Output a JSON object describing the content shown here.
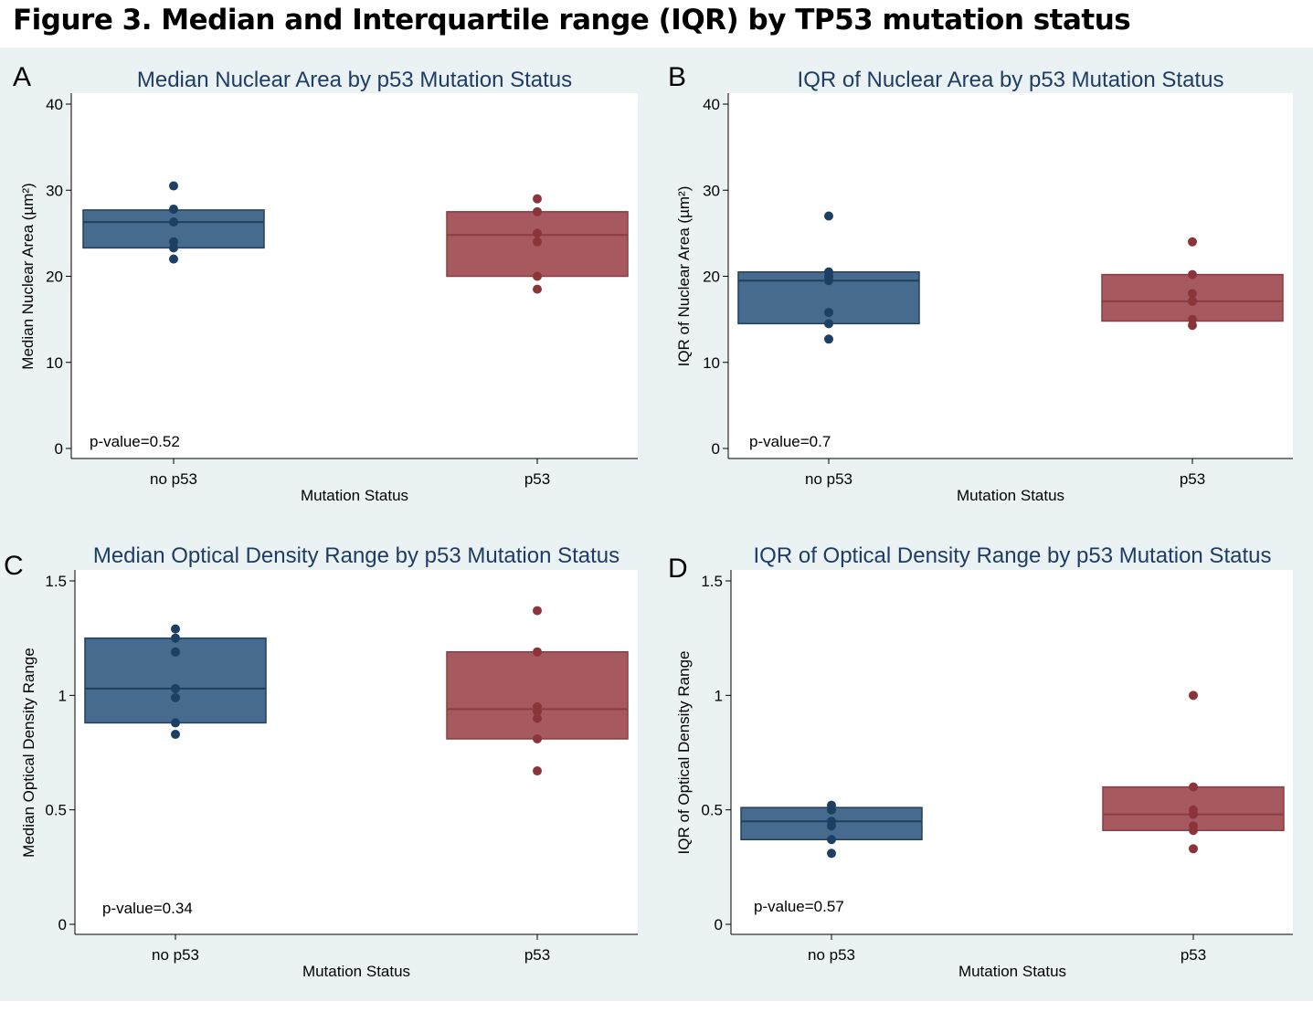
{
  "figure_title": "Figure 3. Median and Interquartile range (IQR) by TP53 mutation status",
  "colors": {
    "blue_fill": "#466b8f",
    "blue_edge": "#213f5c",
    "blue_dot": "#1c3f63",
    "red_fill": "#a65a5f",
    "red_edge": "#8a3c42",
    "red_dot": "#8b353b",
    "title_text": "#1f3c66"
  },
  "chart_data": [
    {
      "panel": "A",
      "type": "box",
      "title": "Median Nuclear Area by p53 Mutation Status",
      "xlabel": "Mutation Status",
      "ylabel": "Median Nuclear Area (µm²)",
      "ylim": [
        0,
        40
      ],
      "yticks": [
        "0",
        "10",
        "20",
        "30",
        "40"
      ],
      "ytick_values": [
        0,
        10,
        20,
        30,
        40
      ],
      "categories": [
        "no p53",
        "p53"
      ],
      "annotation": "p-value=0.52",
      "boxes": [
        {
          "category": "no p53",
          "q1": 23.3,
          "median": 26.3,
          "q3": 27.7,
          "points": [
            30.5,
            27.8,
            26.3,
            24.0,
            23.3,
            22.0
          ]
        },
        {
          "category": "p53",
          "q1": 20.0,
          "median": 24.8,
          "q3": 27.5,
          "points": [
            29.0,
            27.5,
            25.0,
            24.0,
            20.0,
            18.5
          ]
        }
      ]
    },
    {
      "panel": "B",
      "type": "box",
      "title": "IQR of Nuclear Area by p53 Mutation Status",
      "xlabel": "Mutation Status",
      "ylabel": "IQR of Nuclear Area (µm²)",
      "ylim": [
        0,
        40
      ],
      "yticks": [
        "0",
        "10",
        "20",
        "30",
        "40"
      ],
      "ytick_values": [
        0,
        10,
        20,
        30,
        40
      ],
      "categories": [
        "no p53",
        "p53"
      ],
      "annotation": "p-value=0.7",
      "boxes": [
        {
          "category": "no p53",
          "q1": 14.5,
          "median": 19.5,
          "q3": 20.5,
          "points": [
            27.0,
            20.5,
            20.0,
            19.5,
            15.8,
            14.5,
            12.7
          ]
        },
        {
          "category": "p53",
          "q1": 14.8,
          "median": 17.1,
          "q3": 20.2,
          "points": [
            24.0,
            20.2,
            18.0,
            17.1,
            15.0,
            14.3
          ]
        }
      ]
    },
    {
      "panel": "C",
      "type": "box",
      "title": "Median Optical Density Range by p53 Mutation Status",
      "xlabel": "Mutation Status",
      "ylabel": "Median Optical Density Range",
      "ylim": [
        0,
        1.5
      ],
      "yticks": [
        "0",
        "0.5",
        "1",
        "1.5"
      ],
      "ytick_values": [
        0,
        0.5,
        1,
        1.5
      ],
      "categories": [
        "no p53",
        "p53"
      ],
      "annotation": "p-value=0.34",
      "boxes": [
        {
          "category": "no p53",
          "q1": 0.88,
          "median": 1.03,
          "q3": 1.25,
          "points": [
            1.29,
            1.25,
            1.19,
            1.03,
            0.99,
            0.88,
            0.83
          ]
        },
        {
          "category": "p53",
          "q1": 0.81,
          "median": 0.94,
          "q3": 1.19,
          "points": [
            1.37,
            1.19,
            0.95,
            0.93,
            0.9,
            0.81,
            0.67
          ]
        }
      ]
    },
    {
      "panel": "D",
      "type": "box",
      "title": "IQR of Optical Density Range by p53 Mutation Status",
      "xlabel": "Mutation Status",
      "ylabel": "IQR of Optical Density Range",
      "ylim": [
        0,
        1.5
      ],
      "yticks": [
        "0",
        "0.5",
        "1",
        "1.5"
      ],
      "ytick_values": [
        0,
        0.5,
        1,
        1.5
      ],
      "categories": [
        "no p53",
        "p53"
      ],
      "annotation": "p-value=0.57",
      "boxes": [
        {
          "category": "no p53",
          "q1": 0.37,
          "median": 0.45,
          "q3": 0.51,
          "points": [
            0.52,
            0.5,
            0.45,
            0.43,
            0.37,
            0.31
          ]
        },
        {
          "category": "p53",
          "q1": 0.41,
          "median": 0.48,
          "q3": 0.6,
          "points": [
            1.0,
            0.6,
            0.5,
            0.48,
            0.43,
            0.41,
            0.33
          ]
        }
      ]
    }
  ]
}
